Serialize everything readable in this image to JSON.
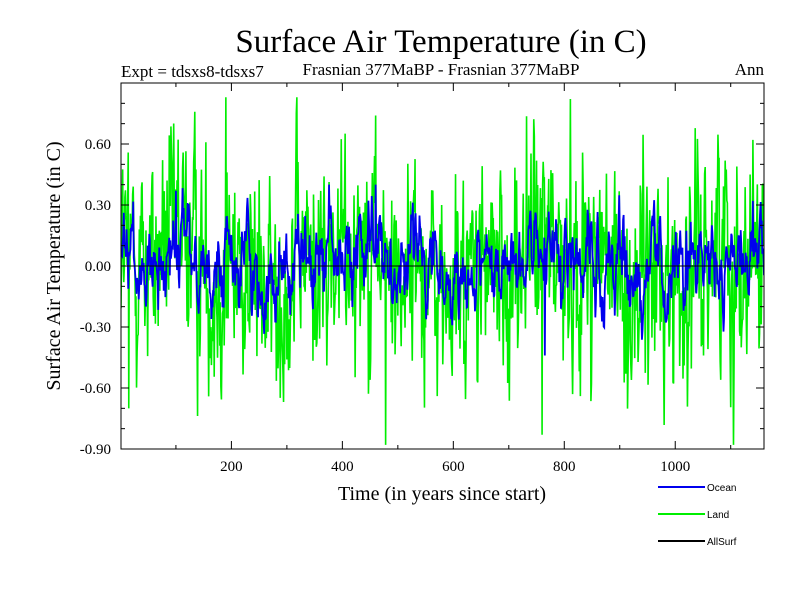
{
  "chart_data": {
    "type": "line",
    "title": "Surface Air Temperature (in C)",
    "subtitle_left": "Expt = tdsxs8-tdsxs7",
    "subtitle_center": "Frasnian 377MaBP - Frasnian 377MaBP",
    "subtitle_right": "Ann",
    "xlabel": "Time (in years since start)",
    "ylabel": "Surface Air Temperature (in C)",
    "xlim": [
      1,
      1160
    ],
    "ylim": [
      -0.9,
      0.9
    ],
    "xticks": [
      200,
      400,
      600,
      800,
      1000
    ],
    "xtick_labels": [
      "200",
      "400",
      "600",
      "800",
      "1000"
    ],
    "yticks": [
      -0.9,
      -0.6,
      -0.3,
      0.0,
      0.3,
      0.6
    ],
    "ytick_labels": [
      "-0.90",
      "-0.60",
      "-0.30",
      "0.00",
      "0.30",
      "0.60"
    ],
    "zero_line": 0.0,
    "series": [
      {
        "name": "Land",
        "color": "#00ee00",
        "n": 1160,
        "mean": 0.0,
        "std": 0.27,
        "approx_min": -0.88,
        "approx_max": 0.83,
        "notable": [
          [
            15,
            -0.7
          ],
          [
            190,
            0.83
          ],
          [
            460,
            0.74
          ],
          [
            478,
            -0.88
          ],
          [
            760,
            -0.83
          ],
          [
            1105,
            -0.88
          ],
          [
            1140,
            0.62
          ]
        ]
      },
      {
        "name": "Ocean",
        "color": "#0000ee",
        "n": 1160,
        "mean": 0.0,
        "std": 0.12,
        "approx_min": -0.44,
        "approx_max": 0.4,
        "notable": [
          [
            100,
            0.37
          ],
          [
            460,
            0.4
          ],
          [
            765,
            -0.44
          ],
          [
            1140,
            0.32
          ]
        ]
      },
      {
        "name": "AllSurf",
        "color": "#000000"
      }
    ]
  }
}
